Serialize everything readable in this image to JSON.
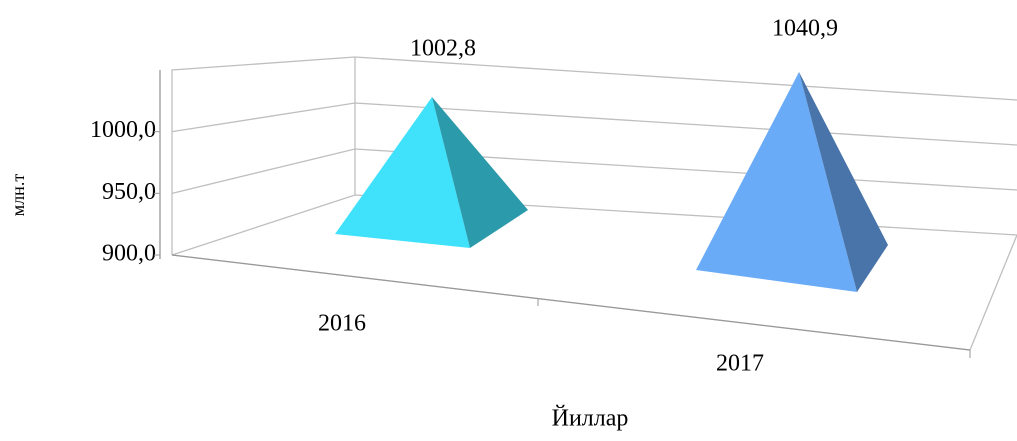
{
  "chart_data": {
    "type": "pyramid3d",
    "categories": [
      "2016",
      "2017"
    ],
    "values": [
      1002.8,
      1040.9
    ],
    "value_labels": [
      "1002,8",
      "1040,9"
    ],
    "colors": [
      "#3fe2fa",
      "#6aabf8"
    ],
    "ylim": [
      900,
      1050
    ],
    "yticks": [
      {
        "value": 900,
        "label": "900,0"
      },
      {
        "value": 950,
        "label": "950,0"
      },
      {
        "value": 1000,
        "label": "1000,0"
      }
    ],
    "y_label": "млн.т",
    "x_label": "Йиллар",
    "grid": true
  }
}
